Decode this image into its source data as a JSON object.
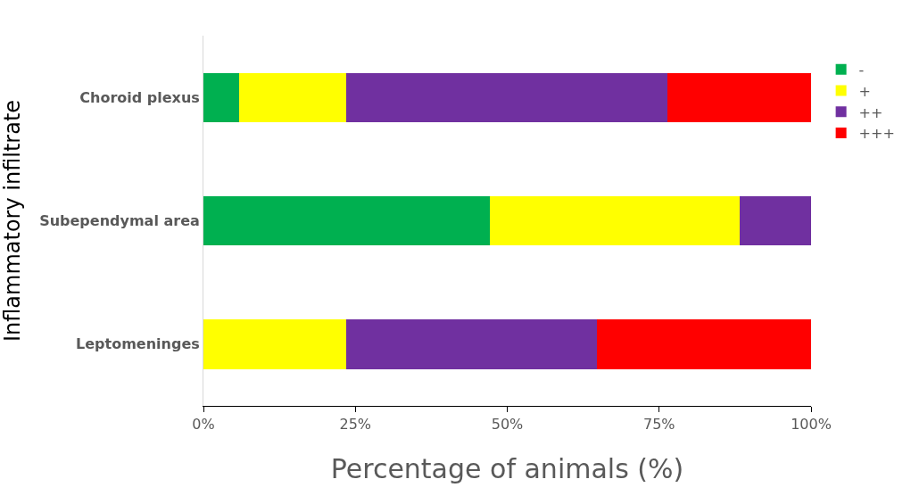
{
  "chart_data": {
    "type": "bar",
    "orientation": "horizontal",
    "stacked": true,
    "categories": [
      "Choroid plexus",
      "Subependymal area",
      "Leptomeninges"
    ],
    "series": [
      {
        "name": "-",
        "color": "#00b050",
        "values": [
          5.9,
          47.1,
          0
        ]
      },
      {
        "name": "+",
        "color": "#ffff00",
        "values": [
          17.6,
          41.2,
          23.5
        ]
      },
      {
        "name": "++",
        "color": "#7030a0",
        "values": [
          52.9,
          11.8,
          41.2
        ]
      },
      {
        "name": "+++",
        "color": "#ff0000",
        "values": [
          23.6,
          0,
          35.3
        ]
      }
    ],
    "xlabel": "Percentage of animals (%)",
    "ylabel": "Inflammatory infiltrate",
    "xlim": [
      0,
      100
    ],
    "xticks": [
      {
        "value": 0,
        "label": "0%"
      },
      {
        "value": 25,
        "label": "25%"
      },
      {
        "value": 50,
        "label": "50%"
      },
      {
        "value": 75,
        "label": "75%"
      },
      {
        "value": 100,
        "label": "100%"
      }
    ],
    "legend": "right"
  }
}
